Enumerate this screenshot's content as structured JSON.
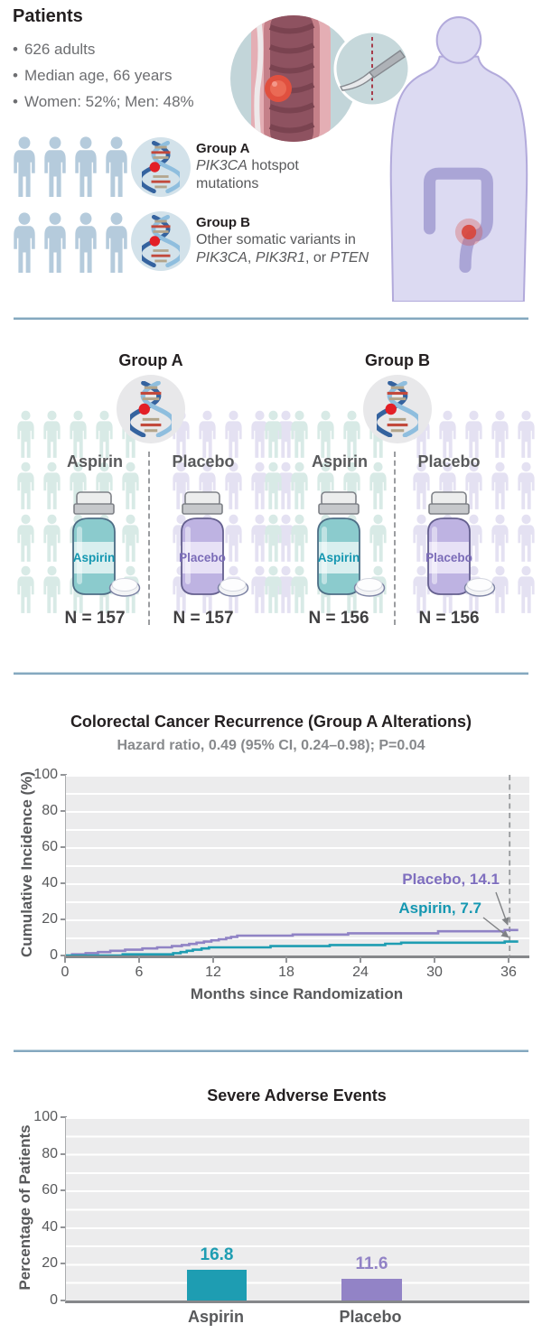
{
  "patients": {
    "heading": "Patients",
    "bullets": [
      "626 adults",
      "Median age, 66 years",
      "Women: 52%; Men: 48%"
    ],
    "group_a": {
      "name": "Group A",
      "gene": "PIK3CA",
      "desc_rest": "hotspot",
      "desc_line2": "mutations"
    },
    "group_b": {
      "name": "Group B",
      "desc_line1": "Other somatic variants in",
      "gene1": "PIK3CA",
      "sep1": ", ",
      "gene2": "PIK3R1",
      "sep2": ", or ",
      "gene3": "PTEN"
    }
  },
  "randomization": {
    "groups": [
      {
        "title": "Group A",
        "arms": [
          {
            "drug": "Aspirin",
            "n": "N = 157"
          },
          {
            "drug": "Placebo",
            "n": "N = 157"
          }
        ]
      },
      {
        "title": "Group B",
        "arms": [
          {
            "drug": "Aspirin",
            "n": "N = 156"
          },
          {
            "drug": "Placebo",
            "n": "N = 156"
          }
        ]
      }
    ]
  },
  "colors": {
    "aspirin": "#1e9db2",
    "placebo": "#9083c5",
    "divider": "#84a8bf"
  },
  "chart_data": [
    {
      "type": "line",
      "subtype": "step",
      "title": "Colorectal Cancer Recurrence (Group A Alterations)",
      "subtitle": "Hazard ratio, 0.49 (95% CI, 0.24–0.98); P=0.04",
      "xlabel": "Months since Randomization",
      "ylabel": "Cumulative Incidence (%)",
      "xlim": [
        0,
        37.6
      ],
      "ylim": [
        0,
        100
      ],
      "xticks": [
        0,
        6,
        12,
        18,
        24,
        30,
        36
      ],
      "yticks": [
        0,
        20,
        40,
        60,
        80,
        100
      ],
      "grid": "horizontal white lines every 10",
      "censor_line_x": 36,
      "series": [
        {
          "name": "Placebo",
          "color": "#9083c5",
          "end_label": "Placebo, 14.1",
          "final_value": 14.1,
          "points": [
            [
              0.5,
              0.65
            ],
            [
              1.6,
              1.3
            ],
            [
              2.6,
              1.9
            ],
            [
              3.6,
              2.6
            ],
            [
              4.8,
              3.2
            ],
            [
              6.2,
              3.9
            ],
            [
              7.4,
              4.5
            ],
            [
              8.6,
              5.2
            ],
            [
              9.4,
              5.8
            ],
            [
              10,
              6.4
            ],
            [
              10.6,
              7.1
            ],
            [
              11.2,
              7.7
            ],
            [
              11.8,
              8.4
            ],
            [
              12.4,
              9
            ],
            [
              13,
              9.7
            ],
            [
              13.4,
              10.3
            ],
            [
              13.9,
              11
            ],
            [
              18.4,
              11.6
            ],
            [
              22.9,
              12.3
            ],
            [
              30.2,
              13.4
            ],
            [
              35.6,
              14.1
            ]
          ]
        },
        {
          "name": "Aspirin",
          "color": "#1e9db2",
          "end_label": "Aspirin, 7.7",
          "final_value": 7.7,
          "points": [
            [
              4.6,
              0.65
            ],
            [
              8.7,
              1.3
            ],
            [
              9.3,
              1.9
            ],
            [
              9.8,
              2.6
            ],
            [
              10.3,
              3.2
            ],
            [
              11,
              3.9
            ],
            [
              11.6,
              4.5
            ],
            [
              16.6,
              5.2
            ],
            [
              21.4,
              5.8
            ],
            [
              25.9,
              6.5
            ],
            [
              27.2,
              7.1
            ],
            [
              35.6,
              7.7
            ]
          ]
        }
      ]
    },
    {
      "type": "bar",
      "title": "Severe Adverse Events",
      "ylabel": "Percentage of Patients",
      "ylim": [
        0,
        100
      ],
      "yticks": [
        0,
        20,
        40,
        60,
        80,
        100
      ],
      "categories": [
        "Aspirin",
        "Placebo"
      ],
      "values": [
        16.8,
        11.6
      ],
      "value_labels": [
        "16.8",
        "11.6"
      ],
      "colors": [
        "#1e9db2",
        "#9283c6"
      ]
    }
  ]
}
